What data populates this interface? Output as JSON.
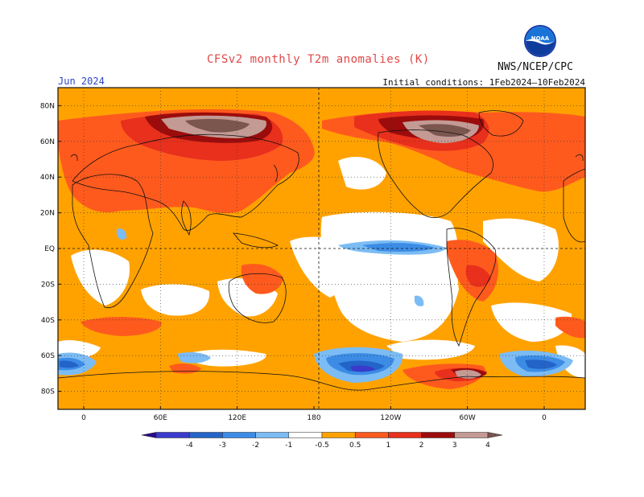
{
  "header": {
    "title": "CFSv2 monthly T2m anomalies (K)",
    "month": "Jun 2024",
    "initial_conditions": "Initial conditions: 1Feb2024—10Feb2024",
    "agency": "NWS/NCEP/CPC",
    "logo_text": "NOAA"
  },
  "axes": {
    "lat_labels": [
      "80N",
      "60N",
      "40N",
      "20N",
      "EQ",
      "20S",
      "40S",
      "60S",
      "80S"
    ],
    "lat_values": [
      80,
      60,
      40,
      20,
      0,
      -20,
      -40,
      -60,
      -80
    ],
    "lon_labels": [
      "0",
      "60E",
      "120E",
      "180",
      "120W",
      "60W",
      "0"
    ],
    "lon_values": [
      0,
      60,
      120,
      180,
      240,
      300,
      360
    ]
  },
  "colorbar": {
    "labels": [
      "-4",
      "-3",
      "-2",
      "-1",
      "-0.5",
      "0.5",
      "1",
      "2",
      "3",
      "4"
    ],
    "bins": [
      {
        "color": "#2a0a8c"
      },
      {
        "color": "#3a3acc"
      },
      {
        "color": "#2364c8"
      },
      {
        "color": "#3c8ce6"
      },
      {
        "color": "#7cbcf4"
      },
      {
        "color": "#ffffff"
      },
      {
        "color": "#ffa200"
      },
      {
        "color": "#ff5a1e"
      },
      {
        "color": "#e8301c"
      },
      {
        "color": "#9c0c0c"
      },
      {
        "color": "#c39a94"
      },
      {
        "color": "#7a564e"
      }
    ]
  },
  "colors": {
    "warm_light": "#ffa200",
    "warm_mid": "#ff5a1e",
    "warm_strong": "#e8301c",
    "warm_dark": "#9c0c0c",
    "warm_extreme": "#c39a94",
    "warm_extreme_dark": "#7a564e",
    "cool_light": "#7cbcf4",
    "cool_mid": "#3c8ce6",
    "cool_strong": "#2364c8",
    "cool_dark": "#3a3acc"
  }
}
